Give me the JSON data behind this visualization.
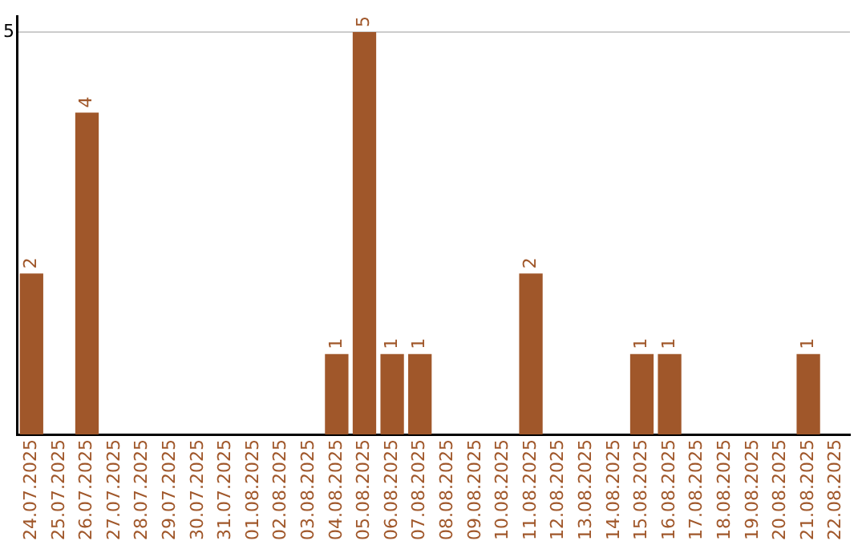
{
  "chart_data": {
    "type": "bar",
    "categories": [
      "24.07.2025",
      "25.07.2025",
      "26.07.2025",
      "27.07.2025",
      "28.07.2025",
      "29.07.2025",
      "30.07.2025",
      "31.07.2025",
      "01.08.2025",
      "02.08.2025",
      "03.08.2025",
      "04.08.2025",
      "05.08.2025",
      "06.08.2025",
      "07.08.2025",
      "08.08.2025",
      "09.08.2025",
      "10.08.2025",
      "11.08.2025",
      "12.08.2025",
      "13.08.2025",
      "14.08.2025",
      "15.08.2025",
      "16.08.2025",
      "17.08.2025",
      "18.08.2025",
      "19.08.2025",
      "20.08.2025",
      "21.08.2025",
      "22.08.2025"
    ],
    "values": [
      2,
      null,
      4,
      null,
      null,
      null,
      null,
      null,
      null,
      null,
      null,
      1,
      5,
      1,
      1,
      null,
      null,
      null,
      2,
      null,
      null,
      null,
      1,
      1,
      null,
      null,
      null,
      null,
      1,
      null
    ],
    "color": "#a0572a",
    "ylim": [
      0,
      5.2
    ],
    "yticks": [
      5
    ],
    "grid": "y",
    "data_labels": true
  }
}
